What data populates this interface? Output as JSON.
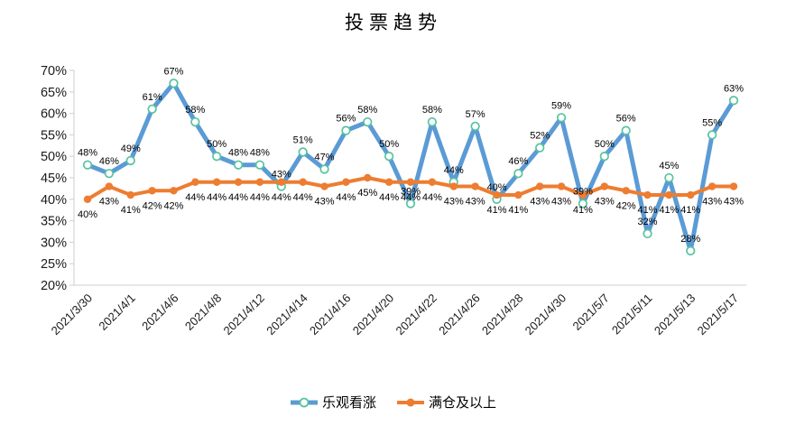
{
  "colors": {
    "optimistic_line": "#5B9BD5",
    "optimistic_marker_ring": "#58C3A0",
    "optimistic_marker_fill": "#FFFFFF",
    "full_position_line": "#ED7D31",
    "axis_line": "#D6D6D6",
    "label_text": "#000000"
  },
  "chart_data": {
    "type": "line",
    "title": "投票趋势",
    "legend_position": "bottom",
    "grid": false,
    "ylim": [
      20,
      70
    ],
    "y_tick_labels": [
      "20%",
      "25%",
      "30%",
      "35%",
      "40%",
      "45%",
      "50%",
      "55%",
      "60%",
      "65%",
      "70%"
    ],
    "x_tick_labels": [
      "2021/3/30",
      "2021/4/1",
      "2021/4/6",
      "2021/4/8",
      "2021/4/12",
      "2021/4/14",
      "2021/4/16",
      "2021/4/20",
      "2021/4/22",
      "2021/4/26",
      "2021/4/28",
      "2021/4/30",
      "2021/5/7",
      "2021/5/11",
      "2021/5/13",
      "2021/5/17"
    ],
    "x_tick_indices": [
      0,
      2,
      4,
      6,
      8,
      10,
      12,
      14,
      16,
      18,
      20,
      22,
      24,
      26,
      28,
      30
    ],
    "point_count": 31,
    "value_suffix": "%",
    "series": [
      {
        "name": "乐观看涨",
        "values": [
          48,
          46,
          49,
          61,
          67,
          58,
          50,
          48,
          48,
          43,
          51,
          47,
          56,
          58,
          50,
          39,
          58,
          44,
          57,
          40,
          46,
          52,
          59,
          39,
          50,
          56,
          32,
          45,
          28,
          55,
          63
        ]
      },
      {
        "name": "满仓及以上",
        "values": [
          40,
          43,
          41,
          42,
          42,
          44,
          44,
          44,
          44,
          44,
          44,
          43,
          44,
          45,
          44,
          44,
          44,
          43,
          43,
          41,
          41,
          43,
          43,
          41,
          43,
          42,
          41,
          41,
          41,
          43,
          43
        ]
      }
    ]
  }
}
